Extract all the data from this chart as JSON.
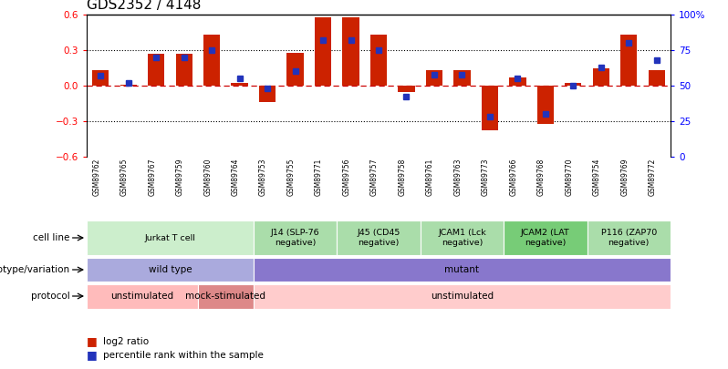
{
  "title": "GDS2352 / 4148",
  "samples": [
    "GSM89762",
    "GSM89765",
    "GSM89767",
    "GSM89759",
    "GSM89760",
    "GSM89764",
    "GSM89753",
    "GSM89755",
    "GSM89771",
    "GSM89756",
    "GSM89757",
    "GSM89758",
    "GSM89761",
    "GSM89763",
    "GSM89773",
    "GSM89766",
    "GSM89768",
    "GSM89770",
    "GSM89754",
    "GSM89769",
    "GSM89772"
  ],
  "log2_ratio": [
    0.13,
    0.01,
    0.27,
    0.27,
    0.43,
    0.02,
    -0.14,
    0.28,
    0.58,
    0.58,
    0.43,
    -0.05,
    0.13,
    0.13,
    -0.38,
    0.07,
    -0.32,
    0.02,
    0.15,
    0.43,
    0.13
  ],
  "percentile": [
    57,
    52,
    70,
    70,
    75,
    55,
    48,
    60,
    82,
    82,
    75,
    42,
    58,
    58,
    28,
    55,
    30,
    50,
    63,
    80,
    68
  ],
  "ylim_left": [
    -0.6,
    0.6
  ],
  "ylim_right": [
    0,
    100
  ],
  "bar_color": "#cc2200",
  "dot_color": "#2233bb",
  "cell_line_groups": [
    {
      "label": "Jurkat T cell",
      "start": 0,
      "end": 6,
      "color": "#cceecc"
    },
    {
      "label": "J14 (SLP-76\nnegative)",
      "start": 6,
      "end": 9,
      "color": "#aaddaa"
    },
    {
      "label": "J45 (CD45\nnegative)",
      "start": 9,
      "end": 12,
      "color": "#aaddaa"
    },
    {
      "label": "JCAM1 (Lck\nnegative)",
      "start": 12,
      "end": 15,
      "color": "#aaddaa"
    },
    {
      "label": "JCAM2 (LAT\nnegative)",
      "start": 15,
      "end": 18,
      "color": "#77cc77"
    },
    {
      "label": "P116 (ZAP70\nnegative)",
      "start": 18,
      "end": 21,
      "color": "#aaddaa"
    }
  ],
  "genotype_groups": [
    {
      "label": "wild type",
      "start": 0,
      "end": 6,
      "color": "#aaaadd"
    },
    {
      "label": "mutant",
      "start": 6,
      "end": 21,
      "color": "#8877cc"
    }
  ],
  "protocol_groups": [
    {
      "label": "unstimulated",
      "start": 0,
      "end": 4,
      "color": "#ffbbbb"
    },
    {
      "label": "mock-stimulated",
      "start": 4,
      "end": 6,
      "color": "#dd8888"
    },
    {
      "label": "unstimulated",
      "start": 6,
      "end": 21,
      "color": "#ffcccc"
    }
  ],
  "row_labels": [
    "cell line",
    "genotype/variation",
    "protocol"
  ],
  "legend_red": "log2 ratio",
  "legend_blue": "percentile rank within the sample"
}
